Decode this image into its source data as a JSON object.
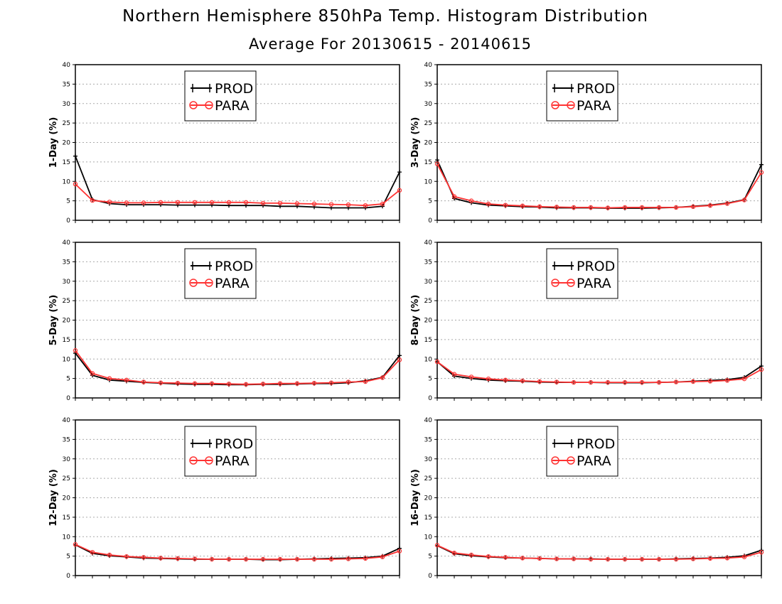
{
  "title": "Northern Hemisphere 850hPa Temp. Histogram Distribution",
  "subtitle": "Average For 20130615 - 20140615",
  "colors": {
    "prod": "#000000",
    "para": "#ff3333",
    "grid": "#aaaaaa"
  },
  "legend": {
    "prod": "PROD",
    "para": "PARA"
  },
  "chart_data": [
    {
      "type": "line",
      "ylabel": "1-Day (%)",
      "ylim": [
        0,
        40
      ],
      "yticks": [
        0,
        5,
        10,
        15,
        20,
        25,
        30,
        35,
        40
      ],
      "grid": "horizontal dotted",
      "legend_position": "top-center",
      "series": [
        {
          "name": "PROD",
          "values": [
            16.5,
            5.3,
            4.3,
            4.0,
            4.0,
            4.0,
            3.9,
            3.9,
            3.9,
            3.8,
            3.8,
            3.8,
            3.6,
            3.6,
            3.4,
            3.2,
            3.2,
            3.2,
            3.6,
            12.4
          ]
        },
        {
          "name": "PARA",
          "values": [
            9.3,
            5.1,
            4.7,
            4.5,
            4.5,
            4.6,
            4.6,
            4.6,
            4.6,
            4.6,
            4.6,
            4.4,
            4.4,
            4.3,
            4.2,
            4.1,
            4.0,
            3.8,
            4.2,
            7.7
          ]
        }
      ]
    },
    {
      "type": "line",
      "ylabel": "3-Day (%)",
      "ylim": [
        0,
        40
      ],
      "yticks": [
        0,
        5,
        10,
        15,
        20,
        25,
        30,
        35,
        40
      ],
      "grid": "horizontal dotted",
      "legend_position": "top-center",
      "series": [
        {
          "name": "PROD",
          "values": [
            15.5,
            5.6,
            4.5,
            3.9,
            3.7,
            3.5,
            3.4,
            3.2,
            3.2,
            3.2,
            3.1,
            3.1,
            3.1,
            3.2,
            3.3,
            3.6,
            3.9,
            4.4,
            5.3,
            14.3
          ]
        },
        {
          "name": "PARA",
          "values": [
            14.5,
            6.1,
            5.0,
            4.2,
            3.9,
            3.7,
            3.5,
            3.4,
            3.3,
            3.3,
            3.2,
            3.3,
            3.3,
            3.3,
            3.3,
            3.5,
            3.8,
            4.3,
            5.2,
            12.3
          ]
        }
      ]
    },
    {
      "type": "line",
      "ylabel": "5-Day (%)",
      "ylim": [
        0,
        40
      ],
      "yticks": [
        0,
        5,
        10,
        15,
        20,
        25,
        30,
        35,
        40
      ],
      "grid": "horizontal dotted",
      "legend_position": "top-center",
      "series": [
        {
          "name": "PROD",
          "values": [
            11.5,
            5.8,
            4.6,
            4.3,
            4.0,
            3.8,
            3.6,
            3.5,
            3.5,
            3.4,
            3.4,
            3.5,
            3.5,
            3.6,
            3.7,
            3.7,
            3.9,
            4.4,
            5.3,
            10.9
          ]
        },
        {
          "name": "PARA",
          "values": [
            12.2,
            6.3,
            5.0,
            4.6,
            4.1,
            3.9,
            3.8,
            3.7,
            3.7,
            3.6,
            3.5,
            3.6,
            3.7,
            3.7,
            3.8,
            3.9,
            4.1,
            4.2,
            5.2,
            9.8
          ]
        }
      ]
    },
    {
      "type": "line",
      "ylabel": "8-Day (%)",
      "ylim": [
        0,
        40
      ],
      "yticks": [
        0,
        5,
        10,
        15,
        20,
        25,
        30,
        35,
        40
      ],
      "grid": "horizontal dotted",
      "legend_position": "top-center",
      "series": [
        {
          "name": "PROD",
          "values": [
            9.3,
            5.6,
            5.0,
            4.6,
            4.4,
            4.3,
            4.1,
            4.0,
            4.0,
            4.0,
            3.9,
            3.9,
            3.9,
            4.0,
            4.1,
            4.3,
            4.5,
            4.7,
            5.3,
            8.2
          ]
        },
        {
          "name": "PARA",
          "values": [
            9.3,
            6.1,
            5.4,
            4.9,
            4.6,
            4.4,
            4.2,
            4.1,
            4.0,
            4.0,
            4.0,
            4.0,
            4.0,
            4.0,
            4.1,
            4.2,
            4.3,
            4.5,
            4.9,
            7.3
          ]
        }
      ]
    },
    {
      "type": "line",
      "ylabel": "12-Day (%)",
      "ylim": [
        0,
        40
      ],
      "yticks": [
        0,
        5,
        10,
        15,
        20,
        25,
        30,
        35,
        40
      ],
      "grid": "horizontal dotted",
      "legend_position": "top-center",
      "series": [
        {
          "name": "PROD",
          "values": [
            7.9,
            5.7,
            5.1,
            4.8,
            4.5,
            4.4,
            4.3,
            4.2,
            4.2,
            4.2,
            4.2,
            4.1,
            4.1,
            4.2,
            4.3,
            4.4,
            4.5,
            4.6,
            5.0,
            7.0
          ]
        },
        {
          "name": "PARA",
          "values": [
            8.0,
            6.0,
            5.3,
            4.9,
            4.7,
            4.5,
            4.4,
            4.3,
            4.2,
            4.2,
            4.2,
            4.2,
            4.2,
            4.2,
            4.2,
            4.2,
            4.3,
            4.4,
            4.8,
            6.3
          ]
        }
      ]
    },
    {
      "type": "line",
      "ylabel": "16-Day (%)",
      "ylim": [
        0,
        40
      ],
      "yticks": [
        0,
        5,
        10,
        15,
        20,
        25,
        30,
        35,
        40
      ],
      "grid": "horizontal dotted",
      "legend_position": "top-center",
      "series": [
        {
          "name": "PROD",
          "values": [
            7.7,
            5.6,
            5.1,
            4.8,
            4.6,
            4.5,
            4.4,
            4.3,
            4.3,
            4.3,
            4.2,
            4.2,
            4.2,
            4.2,
            4.3,
            4.4,
            4.5,
            4.7,
            5.1,
            6.5
          ]
        },
        {
          "name": "PARA",
          "values": [
            7.8,
            5.8,
            5.3,
            4.9,
            4.7,
            4.5,
            4.4,
            4.3,
            4.3,
            4.2,
            4.2,
            4.2,
            4.2,
            4.2,
            4.2,
            4.3,
            4.4,
            4.5,
            4.8,
            6.0
          ]
        }
      ]
    }
  ]
}
